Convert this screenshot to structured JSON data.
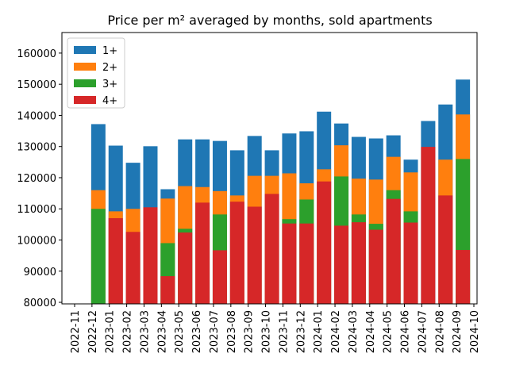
{
  "chart_data": {
    "type": "bar",
    "title": "Price per m² averaged by months, sold apartments",
    "x": [
      "2022-12",
      "2023-01",
      "2023-02",
      "2023-03",
      "2023-04",
      "2023-05",
      "2023-06",
      "2023-07",
      "2023-08",
      "2023-09",
      "2023-10",
      "2023-11",
      "2023-12",
      "2024-01",
      "2024-02",
      "2024-03",
      "2024-04",
      "2024-05",
      "2024-06",
      "2024-07",
      "2024-08",
      "2024-09"
    ],
    "xticks": [
      "2022-11",
      "2022-12",
      "2023-01",
      "2023-02",
      "2023-03",
      "2023-04",
      "2023-05",
      "2023-06",
      "2023-07",
      "2023-08",
      "2023-09",
      "2023-10",
      "2023-11",
      "2023-12",
      "2024-01",
      "2024-02",
      "2024-03",
      "2024-04",
      "2024-05",
      "2024-06",
      "2024-07",
      "2024-08",
      "2024-09",
      "2024-10"
    ],
    "series": [
      {
        "name": "1+",
        "color": "#1f77b4",
        "values": [
          137200,
          130300,
          124800,
          130100,
          116300,
          132300,
          132300,
          131800,
          128800,
          133400,
          128800,
          134200,
          134900,
          141200,
          137400,
          133100,
          132600,
          133600,
          125800,
          138200,
          143500,
          151500
        ]
      },
      {
        "name": "2+",
        "color": "#ff7f0e",
        "values": [
          116000,
          109200,
          110000,
          null,
          113300,
          117300,
          117000,
          115700,
          114300,
          120600,
          120600,
          121400,
          118200,
          122700,
          130400,
          119700,
          119400,
          126700,
          121700,
          null,
          125800,
          140300
        ]
      },
      {
        "name": "3+",
        "color": "#2ca02c",
        "values": [
          110000,
          null,
          null,
          null,
          99000,
          103600,
          null,
          108200,
          null,
          null,
          null,
          106700,
          113000,
          null,
          120400,
          108200,
          105200,
          116000,
          109200,
          null,
          null,
          126000
        ]
      },
      {
        "name": "4+",
        "color": "#d62728",
        "values": [
          null,
          107000,
          102600,
          110500,
          88400,
          102400,
          112000,
          96700,
          112300,
          110700,
          114800,
          105300,
          105300,
          118800,
          104600,
          105700,
          103300,
          113200,
          105600,
          129900,
          114300,
          96800
        ]
      }
    ],
    "ylim": [
      79500,
      166600
    ],
    "yticks": [
      80000,
      90000,
      100000,
      110000,
      120000,
      130000,
      140000,
      150000,
      160000
    ],
    "legend": "upper left"
  }
}
